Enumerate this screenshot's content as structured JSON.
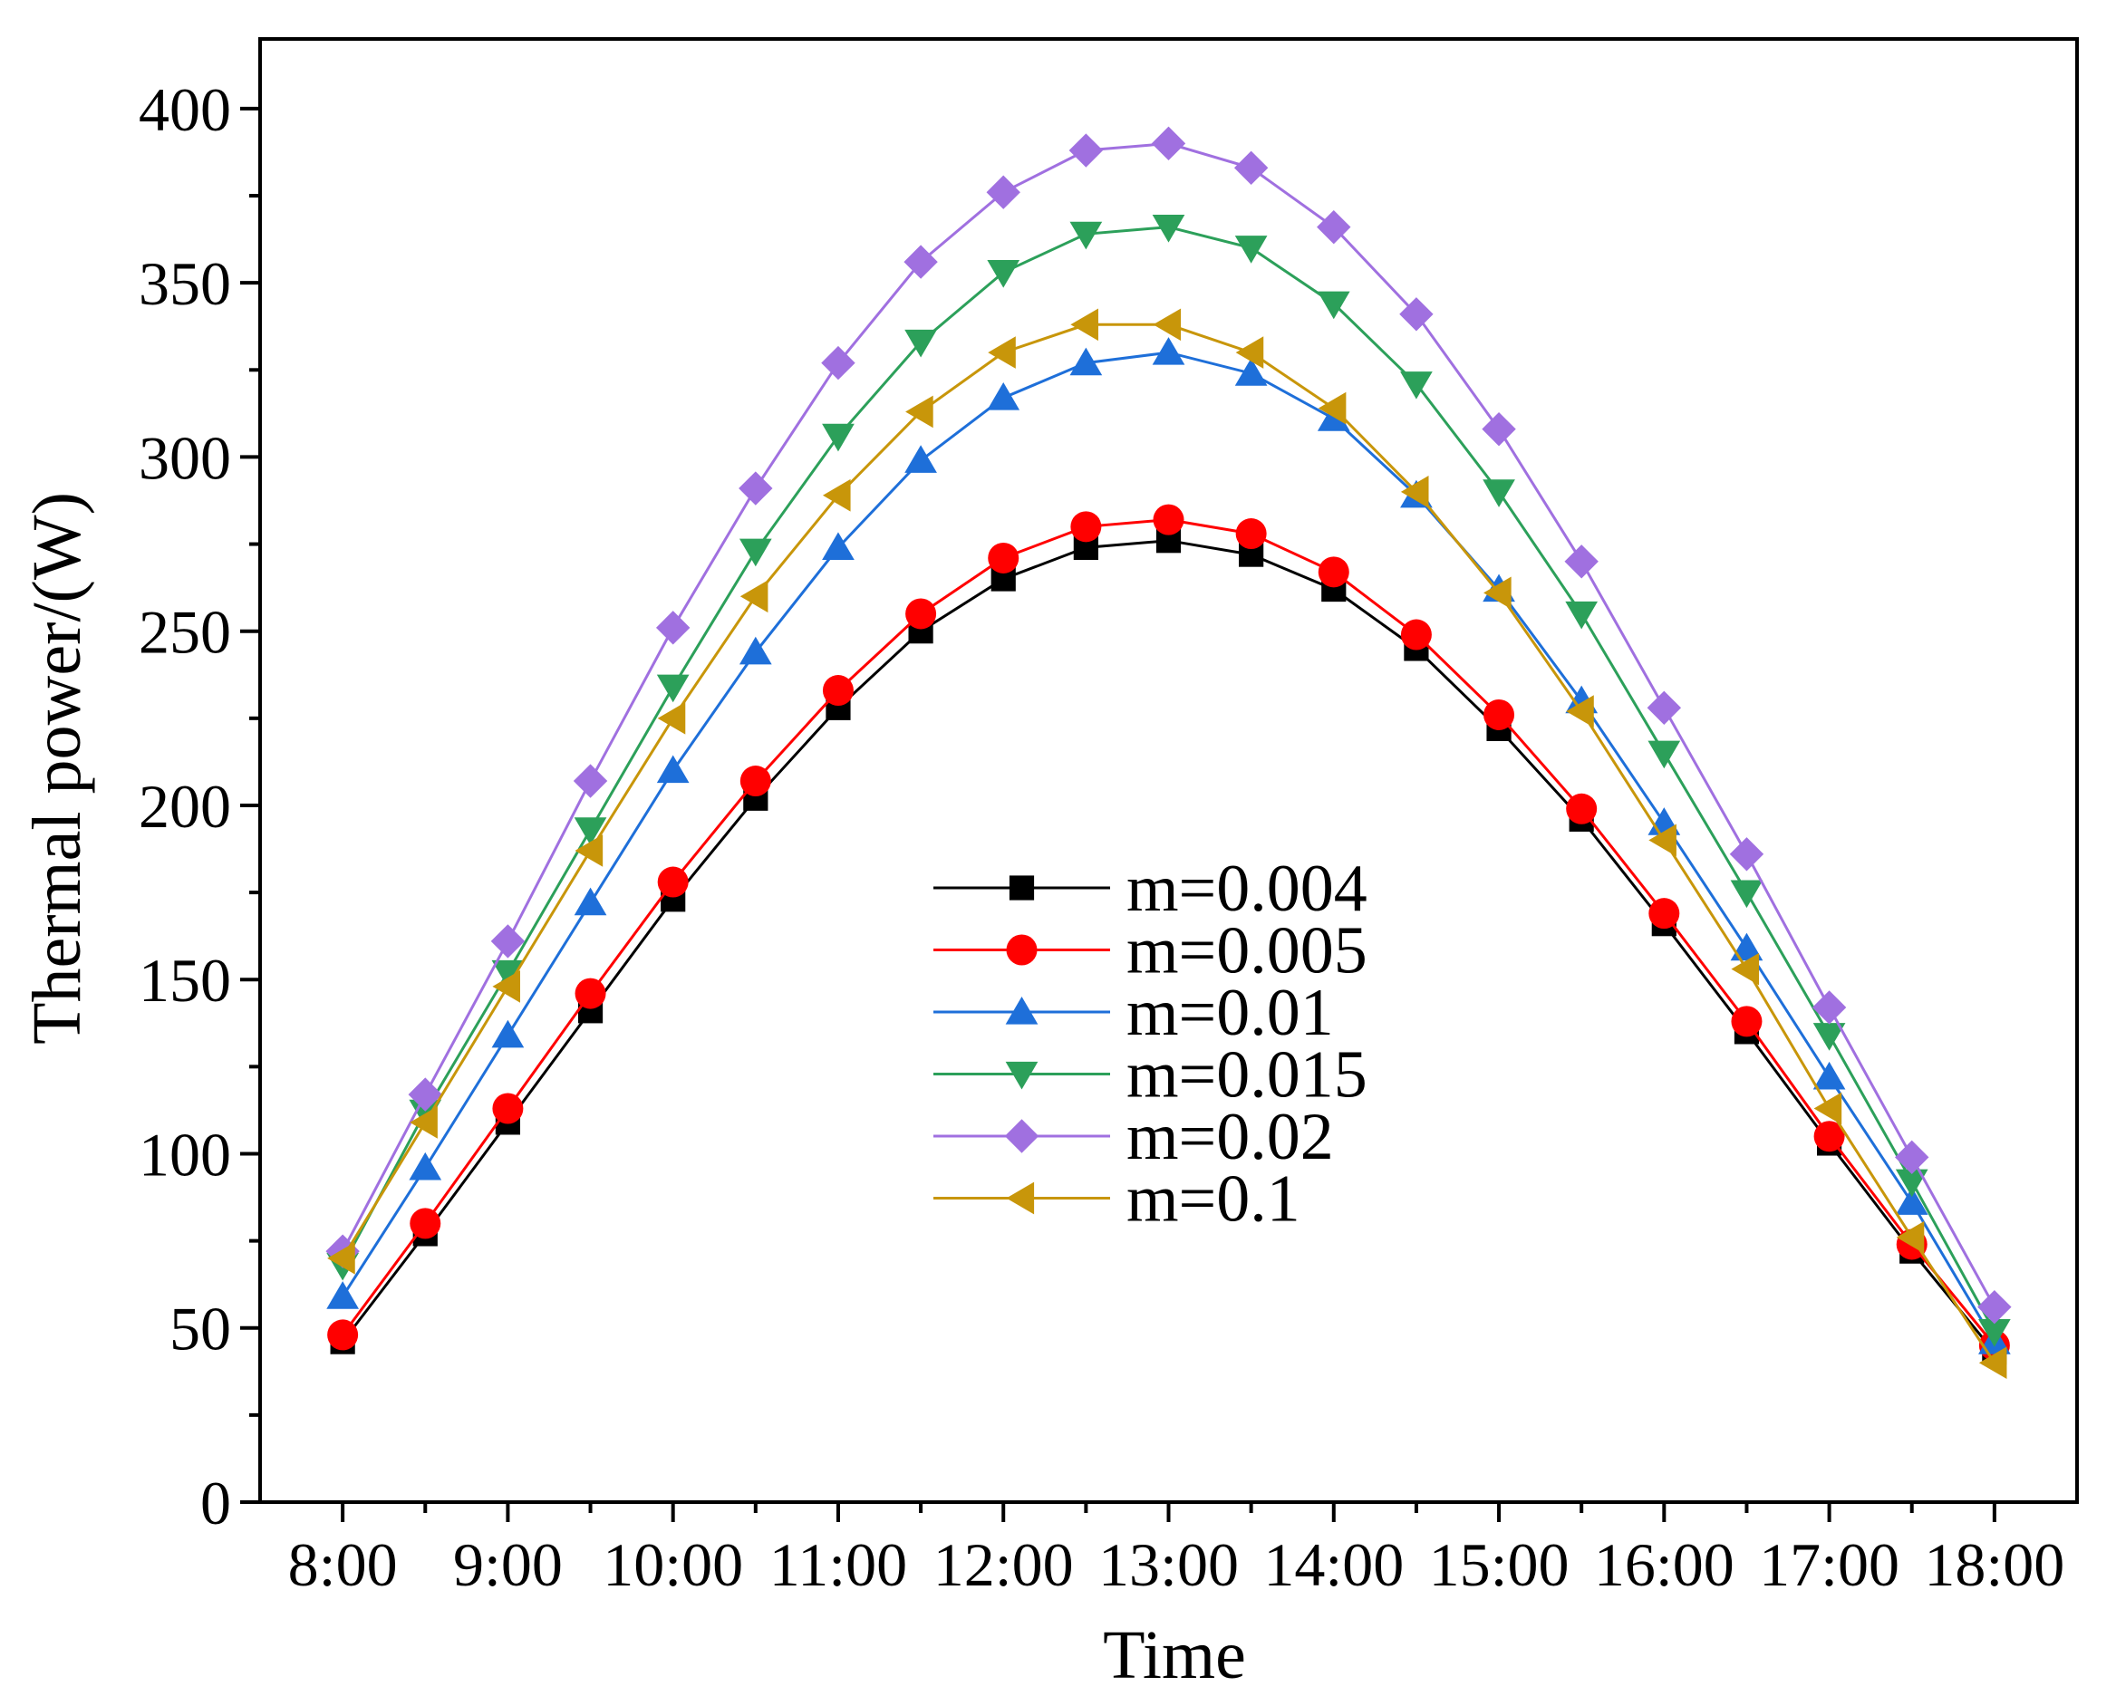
{
  "chart_data": {
    "type": "line",
    "title": "",
    "xlabel": "Time",
    "ylabel": "Thermal power/(W)",
    "ylim": [
      0,
      420
    ],
    "yticks": [
      0,
      50,
      100,
      150,
      200,
      250,
      300,
      350,
      400
    ],
    "y_tick_labels": [
      "0",
      "50",
      "100",
      "150",
      "200",
      "250",
      "300",
      "350",
      "400"
    ],
    "x": [
      8,
      8.5,
      9,
      9.5,
      10,
      10.5,
      11,
      11.5,
      12,
      12.5,
      13,
      13.5,
      14,
      14.5,
      15,
      15.5,
      16,
      16.5,
      17,
      17.5,
      18
    ],
    "xlim": [
      7.5,
      18.5
    ],
    "xticks": [
      8,
      9,
      10,
      11,
      12,
      13,
      14,
      15,
      16,
      17,
      18
    ],
    "x_tick_labels": [
      "8:00",
      "9:00",
      "10:00",
      "11:00",
      "12:00",
      "13:00",
      "14:00",
      "15:00",
      "16:00",
      "17:00",
      "18:00"
    ],
    "legend_position": "center",
    "series": [
      {
        "name": "m=0.004",
        "color": "#000000",
        "marker": "square",
        "values": [
          46,
          77,
          109,
          141,
          173,
          202,
          228,
          250,
          265,
          274,
          276,
          272,
          262,
          245,
          222,
          196,
          166,
          135,
          103,
          72,
          43
        ]
      },
      {
        "name": "m=0.005",
        "color": "#ff0000",
        "marker": "circle",
        "values": [
          48,
          80,
          113,
          146,
          178,
          207,
          233,
          255,
          271,
          280,
          282,
          278,
          267,
          249,
          226,
          199,
          169,
          138,
          105,
          74,
          45
        ]
      },
      {
        "name": "m=0.01",
        "color": "#1e6fd9",
        "marker": "triangle-up",
        "values": [
          59,
          96,
          134,
          172,
          210,
          244,
          274,
          299,
          317,
          327,
          330,
          324,
          311,
          289,
          262,
          230,
          195,
          159,
          122,
          86,
          46
        ]
      },
      {
        "name": "m=0.015",
        "color": "#2ca05a",
        "marker": "triangle-down",
        "values": [
          68,
          112,
          152,
          193,
          234,
          273,
          306,
          333,
          353,
          364,
          366,
          360,
          344,
          321,
          290,
          255,
          215,
          175,
          134,
          92,
          49
        ]
      },
      {
        "name": "m=0.02",
        "color": "#a070e0",
        "marker": "diamond",
        "values": [
          72,
          117,
          161,
          207,
          251,
          291,
          327,
          356,
          376,
          388,
          390,
          383,
          366,
          341,
          308,
          270,
          228,
          186,
          142,
          99,
          56
        ]
      },
      {
        "name": "m=0.1",
        "color": "#c8960a",
        "marker": "triangle-left",
        "values": [
          70,
          109,
          148,
          187,
          225,
          260,
          289,
          313,
          330,
          338,
          338,
          330,
          314,
          290,
          261,
          227,
          190,
          153,
          113,
          76,
          40
        ]
      }
    ]
  }
}
